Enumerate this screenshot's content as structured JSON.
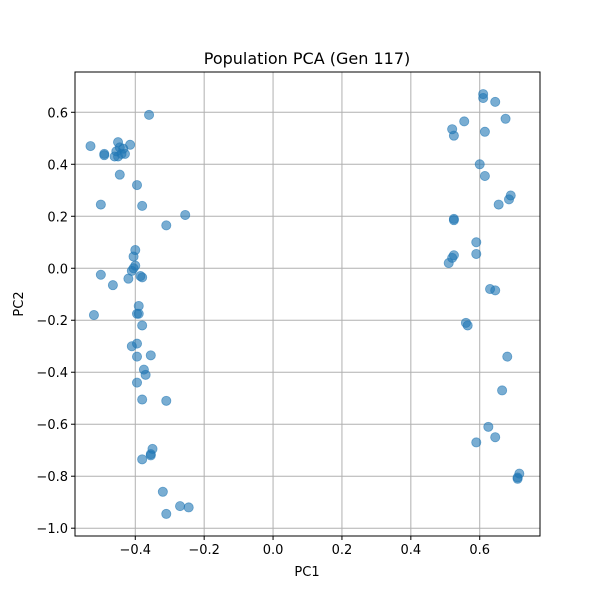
{
  "chart_data": {
    "type": "scatter",
    "title": "Population PCA (Gen 117)",
    "xlabel": "PC1",
    "ylabel": "PC2",
    "xlim": [
      -0.575,
      0.775
    ],
    "ylim": [
      -1.03,
      0.755
    ],
    "xticks": [
      -0.4,
      -0.2,
      0.0,
      0.2,
      0.4,
      0.6
    ],
    "xtick_labels": [
      "−0.4",
      "−0.2",
      "0.0",
      "0.2",
      "0.4",
      "0.6"
    ],
    "yticks": [
      -1.0,
      -0.8,
      -0.6,
      -0.4,
      -0.2,
      0.0,
      0.2,
      0.4,
      0.6
    ],
    "ytick_labels": [
      "−1.0",
      "−0.8",
      "−0.6",
      "−0.4",
      "−0.2",
      "0.0",
      "0.2",
      "0.4",
      "0.6"
    ],
    "grid": true,
    "marker_color": "#1f77b4",
    "marker_alpha": 0.6,
    "points": [
      [
        -0.53,
        0.47
      ],
      [
        -0.49,
        0.44
      ],
      [
        -0.49,
        0.435
      ],
      [
        -0.45,
        0.485
      ],
      [
        -0.45,
        0.43
      ],
      [
        -0.44,
        0.44
      ],
      [
        -0.445,
        0.465
      ],
      [
        -0.435,
        0.46
      ],
      [
        -0.43,
        0.44
      ],
      [
        -0.415,
        0.475
      ],
      [
        -0.455,
        0.45
      ],
      [
        -0.46,
        0.43
      ],
      [
        -0.36,
        0.59
      ],
      [
        -0.445,
        0.36
      ],
      [
        -0.395,
        0.32
      ],
      [
        -0.5,
        0.245
      ],
      [
        -0.38,
        0.24
      ],
      [
        -0.31,
        0.165
      ],
      [
        -0.255,
        0.205
      ],
      [
        -0.4,
        0.07
      ],
      [
        -0.405,
        0.045
      ],
      [
        -0.4,
        0.01
      ],
      [
        -0.405,
        0.0
      ],
      [
        -0.41,
        -0.01
      ],
      [
        -0.385,
        -0.03
      ],
      [
        -0.38,
        -0.035
      ],
      [
        -0.42,
        -0.04
      ],
      [
        -0.5,
        -0.025
      ],
      [
        -0.465,
        -0.065
      ],
      [
        -0.52,
        -0.18
      ],
      [
        -0.39,
        -0.145
      ],
      [
        -0.395,
        -0.175
      ],
      [
        -0.39,
        -0.175
      ],
      [
        -0.38,
        -0.22
      ],
      [
        -0.41,
        -0.3
      ],
      [
        -0.395,
        -0.29
      ],
      [
        -0.395,
        -0.34
      ],
      [
        -0.355,
        -0.335
      ],
      [
        -0.375,
        -0.39
      ],
      [
        -0.37,
        -0.41
      ],
      [
        -0.395,
        -0.44
      ],
      [
        -0.38,
        -0.505
      ],
      [
        -0.31,
        -0.51
      ],
      [
        -0.35,
        -0.695
      ],
      [
        -0.355,
        -0.715
      ],
      [
        -0.355,
        -0.72
      ],
      [
        -0.38,
        -0.735
      ],
      [
        -0.32,
        -0.86
      ],
      [
        -0.27,
        -0.915
      ],
      [
        -0.245,
        -0.92
      ],
      [
        -0.31,
        -0.945
      ],
      [
        0.61,
        0.67
      ],
      [
        0.61,
        0.655
      ],
      [
        0.645,
        0.64
      ],
      [
        0.675,
        0.575
      ],
      [
        0.555,
        0.565
      ],
      [
        0.52,
        0.535
      ],
      [
        0.615,
        0.525
      ],
      [
        0.525,
        0.51
      ],
      [
        0.6,
        0.4
      ],
      [
        0.615,
        0.355
      ],
      [
        0.69,
        0.28
      ],
      [
        0.685,
        0.265
      ],
      [
        0.655,
        0.245
      ],
      [
        0.525,
        0.19
      ],
      [
        0.525,
        0.185
      ],
      [
        0.59,
        0.1
      ],
      [
        0.59,
        0.055
      ],
      [
        0.525,
        0.05
      ],
      [
        0.52,
        0.04
      ],
      [
        0.51,
        0.02
      ],
      [
        0.63,
        -0.08
      ],
      [
        0.645,
        -0.085
      ],
      [
        0.56,
        -0.21
      ],
      [
        0.565,
        -0.22
      ],
      [
        0.68,
        -0.34
      ],
      [
        0.665,
        -0.47
      ],
      [
        0.625,
        -0.61
      ],
      [
        0.645,
        -0.65
      ],
      [
        0.59,
        -0.67
      ],
      [
        0.715,
        -0.79
      ],
      [
        0.71,
        -0.805
      ],
      [
        0.71,
        -0.81
      ]
    ]
  }
}
